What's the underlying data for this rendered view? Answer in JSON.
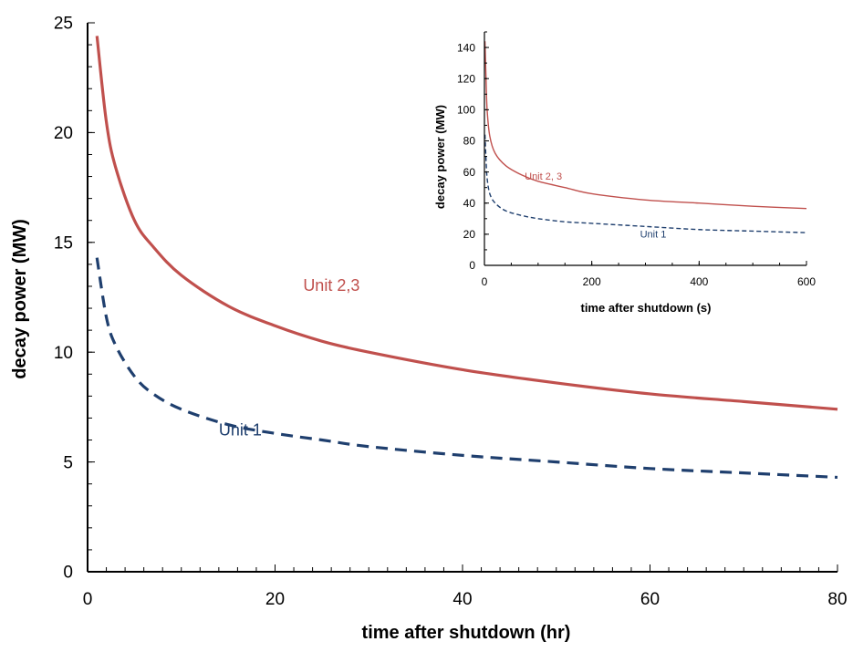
{
  "chart_data": [
    {
      "type": "line",
      "xlabel": "time after shutdown (hr)",
      "ylabel": "decay power (MW)",
      "xlim": [
        0,
        80
      ],
      "ylim": [
        0,
        25
      ],
      "xticks": [
        0,
        20,
        40,
        60,
        80
      ],
      "yticks": [
        0,
        5,
        10,
        15,
        20,
        25
      ],
      "grid": false,
      "legend": "none",
      "series": [
        {
          "name": "Unit 2,3",
          "style": "solid",
          "color": "#c0504d",
          "x": [
            1,
            2,
            3,
            5,
            7,
            10,
            15,
            20,
            25,
            30,
            40,
            50,
            60,
            70,
            80
          ],
          "y": [
            24.4,
            20.5,
            18.4,
            16.0,
            14.8,
            13.5,
            12.1,
            11.2,
            10.5,
            10.0,
            9.2,
            8.6,
            8.1,
            7.75,
            7.4
          ]
        },
        {
          "name": "Unit 1",
          "style": "dashed",
          "color": "#1f3f6e",
          "x": [
            1,
            2,
            3,
            5,
            7,
            10,
            15,
            20,
            25,
            30,
            40,
            50,
            60,
            70,
            80
          ],
          "y": [
            14.3,
            11.6,
            10.3,
            8.9,
            8.1,
            7.4,
            6.7,
            6.3,
            6.0,
            5.7,
            5.3,
            5.0,
            4.7,
            4.5,
            4.3
          ]
        }
      ],
      "annotations": [
        {
          "text": "Unit 2,3",
          "x": 23,
          "y": 12.8
        },
        {
          "text": "Unit 1",
          "x": 14,
          "y": 6.2
        }
      ]
    },
    {
      "type": "line",
      "xlabel": "time after shutdown (s)",
      "ylabel": "decay power (MW)",
      "xlim": [
        0,
        600
      ],
      "ylim": [
        0,
        150
      ],
      "xticks": [
        0,
        200,
        400,
        600
      ],
      "yticks": [
        0,
        20,
        40,
        60,
        80,
        100,
        120,
        140
      ],
      "grid": false,
      "legend": "none",
      "series": [
        {
          "name": "Unit 2, 3",
          "style": "solid",
          "color": "#c0504d",
          "x": [
            1,
            3,
            5,
            10,
            20,
            40,
            70,
            100,
            150,
            200,
            300,
            400,
            500,
            600
          ],
          "y": [
            144,
            120,
            100,
            83,
            72,
            64,
            58,
            54,
            50,
            46,
            42,
            40,
            38,
            36.5
          ]
        },
        {
          "name": "Unit 1",
          "style": "dashed",
          "color": "#1f3f6e",
          "x": [
            1,
            3,
            5,
            10,
            20,
            40,
            70,
            100,
            150,
            200,
            300,
            400,
            500,
            600
          ],
          "y": [
            84,
            68,
            56,
            46,
            40,
            35,
            32,
            30,
            28,
            27,
            25,
            23,
            22,
            21
          ]
        }
      ],
      "annotations": [
        {
          "text": "Unit 2, 3",
          "x": 75,
          "y": 55
        },
        {
          "text": "Unit 1",
          "x": 290,
          "y": 18
        }
      ]
    }
  ]
}
